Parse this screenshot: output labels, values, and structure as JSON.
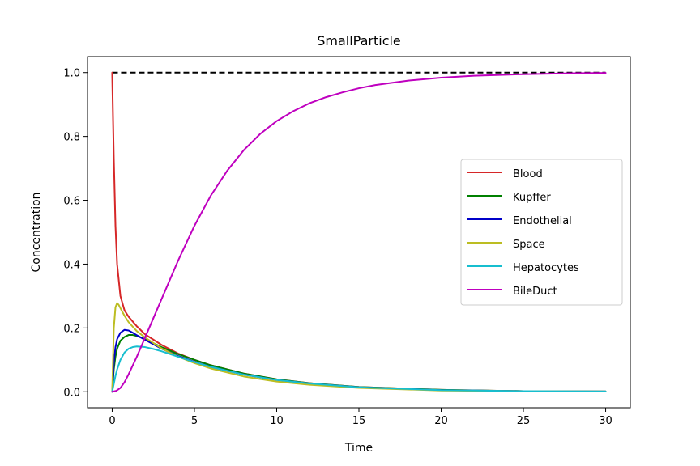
{
  "chart_data": {
    "type": "line",
    "title": "SmallParticle",
    "xlabel": "Time",
    "ylabel": "Concentration",
    "xlim": [
      -1.5,
      31.5
    ],
    "ylim": [
      -0.05,
      1.05
    ],
    "xticks": [
      0,
      5,
      10,
      15,
      20,
      25,
      30
    ],
    "yticks": [
      0.0,
      0.2,
      0.4,
      0.6,
      0.8,
      1.0
    ],
    "xtick_labels": [
      "0",
      "5",
      "10",
      "15",
      "20",
      "25",
      "30"
    ],
    "ytick_labels": [
      "0.0",
      "0.2",
      "0.4",
      "0.6",
      "0.8",
      "1.0"
    ],
    "grid": false,
    "legend": {
      "position": "center-right"
    },
    "series": [
      {
        "name": "Blood",
        "color": "#d62728",
        "x": [
          0,
          0.05,
          0.1,
          0.2,
          0.3,
          0.5,
          0.75,
          1,
          1.5,
          2,
          3,
          4,
          5,
          6,
          8,
          10,
          12,
          15,
          20,
          25,
          30
        ],
        "y": [
          1.0,
          0.86,
          0.73,
          0.52,
          0.4,
          0.3,
          0.255,
          0.235,
          0.205,
          0.18,
          0.147,
          0.12,
          0.1,
          0.083,
          0.057,
          0.039,
          0.027,
          0.015,
          0.006,
          0.002,
          0.001
        ]
      },
      {
        "name": "Kupffer",
        "color": "#008000",
        "x": [
          0,
          0.1,
          0.2,
          0.3,
          0.5,
          0.75,
          1,
          1.25,
          1.5,
          2,
          3,
          4,
          5,
          6,
          8,
          10,
          12,
          15,
          20,
          25,
          30
        ],
        "y": [
          0.0,
          0.07,
          0.11,
          0.135,
          0.16,
          0.172,
          0.178,
          0.178,
          0.175,
          0.165,
          0.14,
          0.118,
          0.1,
          0.083,
          0.057,
          0.039,
          0.027,
          0.015,
          0.006,
          0.002,
          0.001
        ]
      },
      {
        "name": "Endothelial",
        "color": "#0000c8",
        "x": [
          0,
          0.1,
          0.2,
          0.3,
          0.5,
          0.75,
          1,
          1.25,
          1.5,
          2,
          3,
          4,
          5,
          6,
          8,
          10,
          12,
          15,
          20,
          25,
          30
        ],
        "y": [
          0.0,
          0.09,
          0.14,
          0.165,
          0.185,
          0.194,
          0.192,
          0.185,
          0.177,
          0.163,
          0.135,
          0.112,
          0.094,
          0.078,
          0.054,
          0.037,
          0.026,
          0.014,
          0.005,
          0.002,
          0.001
        ]
      },
      {
        "name": "Space",
        "color": "#bcbd22",
        "x": [
          0,
          0.1,
          0.2,
          0.3,
          0.4,
          0.5,
          0.75,
          1,
          1.5,
          2,
          3,
          4,
          5,
          6,
          8,
          10,
          12,
          15,
          20,
          25,
          30
        ],
        "y": [
          0.0,
          0.2,
          0.265,
          0.278,
          0.272,
          0.262,
          0.238,
          0.218,
          0.19,
          0.17,
          0.136,
          0.11,
          0.09,
          0.073,
          0.048,
          0.032,
          0.022,
          0.012,
          0.004,
          0.002,
          0.001
        ]
      },
      {
        "name": "Hepatocytes",
        "color": "#17becf",
        "x": [
          0,
          0.1,
          0.2,
          0.3,
          0.5,
          0.75,
          1,
          1.25,
          1.5,
          2,
          2.5,
          3,
          4,
          5,
          6,
          8,
          10,
          12,
          15,
          20,
          25,
          30
        ],
        "y": [
          0.0,
          0.025,
          0.05,
          0.07,
          0.1,
          0.123,
          0.135,
          0.14,
          0.142,
          0.14,
          0.134,
          0.127,
          0.11,
          0.093,
          0.078,
          0.054,
          0.037,
          0.026,
          0.014,
          0.005,
          0.002,
          0.001
        ]
      },
      {
        "name": "BileDuct",
        "color": "#bf00bf",
        "x": [
          0,
          0.25,
          0.5,
          0.75,
          1,
          1.5,
          2,
          3,
          4,
          5,
          6,
          7,
          8,
          9,
          10,
          11,
          12,
          13,
          14,
          15,
          16,
          18,
          20,
          22,
          25,
          28,
          30
        ],
        "y": [
          0.0,
          0.003,
          0.012,
          0.03,
          0.055,
          0.11,
          0.17,
          0.29,
          0.41,
          0.52,
          0.615,
          0.693,
          0.757,
          0.808,
          0.848,
          0.879,
          0.904,
          0.923,
          0.938,
          0.951,
          0.961,
          0.975,
          0.984,
          0.99,
          0.995,
          0.998,
          0.999
        ]
      }
    ],
    "reference_lines": [
      {
        "type": "horizontal",
        "y": 1.0,
        "x_from": 0,
        "x_to": 30,
        "color": "#000000",
        "style": "dashed"
      }
    ]
  }
}
